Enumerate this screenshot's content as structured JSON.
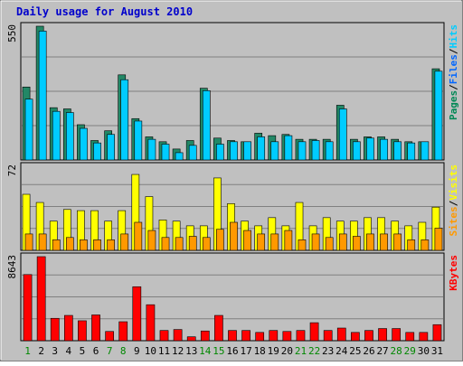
{
  "chart_data": {
    "type": "bar",
    "title": "Daily usage for August 2010",
    "categories": [
      "1",
      "2",
      "3",
      "4",
      "5",
      "6",
      "7",
      "8",
      "9",
      "10",
      "11",
      "12",
      "13",
      "14",
      "15",
      "16",
      "17",
      "18",
      "19",
      "20",
      "21",
      "22",
      "23",
      "24",
      "25",
      "26",
      "27",
      "28",
      "29",
      "30",
      "31"
    ],
    "weekend_days": [
      "1",
      "7",
      "8",
      "14",
      "15",
      "21",
      "22",
      "28",
      "29"
    ],
    "colors": {
      "title": "#0000cc",
      "weekday_label": "#000000",
      "weekend_label": "#008800",
      "hits": "#00ccff",
      "files": "#0066ff",
      "pages": "#008855",
      "visits": "#ff9900",
      "sites": "#ffff00",
      "kbytes": "#ff0000"
    },
    "panels": [
      {
        "id": "hits",
        "ymax_label": "550",
        "ylim": [
          0,
          550
        ],
        "legend": [
          {
            "text": "Pages",
            "color": "#008855"
          },
          {
            "text": "/",
            "color": "#000000"
          },
          {
            "text": "Files",
            "color": "#0066ff"
          },
          {
            "text": "/",
            "color": "#000000"
          },
          {
            "text": "Hits",
            "color": "#00ccff"
          }
        ],
        "series": [
          {
            "name": "Pages",
            "color": "#228866",
            "values": [
              300,
              550,
              215,
              210,
              145,
              80,
              120,
              350,
              170,
              95,
              75,
              45,
              80,
              295,
              90,
              80,
              75,
              110,
              100,
              105,
              85,
              85,
              85,
              225,
              85,
              95,
              95,
              85,
              75,
              75,
              375
            ]
          },
          {
            "name": "Hits",
            "color": "#00ccff",
            "values": [
              250,
              530,
              200,
              195,
              130,
              70,
              105,
              330,
              160,
              85,
              65,
              30,
              60,
              285,
              65,
              75,
              75,
              95,
              75,
              100,
              75,
              80,
              75,
              210,
              75,
              90,
              85,
              75,
              70,
              75,
              365
            ]
          }
        ]
      },
      {
        "id": "visits",
        "ymax_label": "72",
        "ylim": [
          0,
          72
        ],
        "legend": [
          {
            "text": "Sites",
            "color": "#ff9900"
          },
          {
            "text": "/",
            "color": "#000000"
          },
          {
            "text": "Visits",
            "color": "#ffff00"
          }
        ],
        "series": [
          {
            "name": "Visits",
            "color": "#ffff00",
            "values": [
              48,
              41,
              25,
              35,
              34,
              34,
              25,
              34,
              65,
              46,
              26,
              25,
              21,
              21,
              62,
              40,
              25,
              21,
              28,
              21,
              41,
              21,
              28,
              25,
              25,
              28,
              28,
              25,
              21,
              24,
              37
            ]
          },
          {
            "name": "Sites",
            "color": "#ff9900",
            "values": [
              14,
              14,
              9,
              11,
              9,
              9,
              9,
              14,
              24,
              17,
              11,
              11,
              12,
              11,
              18,
              24,
              17,
              14,
              14,
              17,
              9,
              14,
              11,
              14,
              12,
              14,
              14,
              14,
              9,
              9,
              19
            ]
          }
        ]
      },
      {
        "id": "kbytes",
        "ymax_label": "8643",
        "ylim": [
          0,
          8643
        ],
        "legend": [
          {
            "text": "KBytes",
            "color": "#ff0000"
          }
        ],
        "series": [
          {
            "name": "KBytes",
            "color": "#ff0000",
            "values": [
              6800,
              8643,
              2300,
              2600,
              2050,
              2650,
              950,
              1950,
              5550,
              3700,
              1050,
              1150,
              400,
              1000,
              2600,
              1050,
              1050,
              850,
              1050,
              950,
              1050,
              1850,
              1050,
              1300,
              850,
              1050,
              1250,
              1250,
              850,
              850,
              1650
            ]
          }
        ]
      }
    ]
  }
}
